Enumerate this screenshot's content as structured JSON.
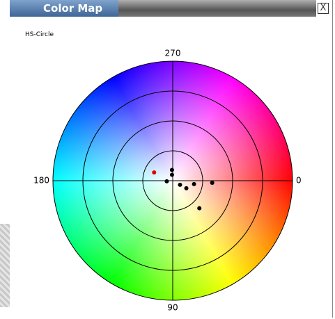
{
  "window": {
    "title": "Color Map",
    "close": "X"
  },
  "panel_label": "HS-Circle",
  "chart": {
    "angle_ticks": [
      0,
      90,
      180,
      270
    ],
    "points": [
      {
        "hue": 204,
        "saturation": 0.17,
        "color": "#e00000"
      },
      {
        "hue": 266,
        "saturation": 0.09,
        "color": "#000000"
      },
      {
        "hue": 263,
        "saturation": 0.05,
        "color": "#000000"
      },
      {
        "hue": 174,
        "saturation": 0.05,
        "color": "#000000"
      },
      {
        "hue": 29,
        "saturation": 0.07,
        "color": "#000000"
      },
      {
        "hue": 29,
        "saturation": 0.13,
        "color": "#000000"
      },
      {
        "hue": 9,
        "saturation": 0.18,
        "color": "#000000"
      },
      {
        "hue": 3,
        "saturation": 0.33,
        "color": "#000000"
      },
      {
        "hue": 46,
        "saturation": 0.32,
        "color": "#000000"
      }
    ]
  }
}
